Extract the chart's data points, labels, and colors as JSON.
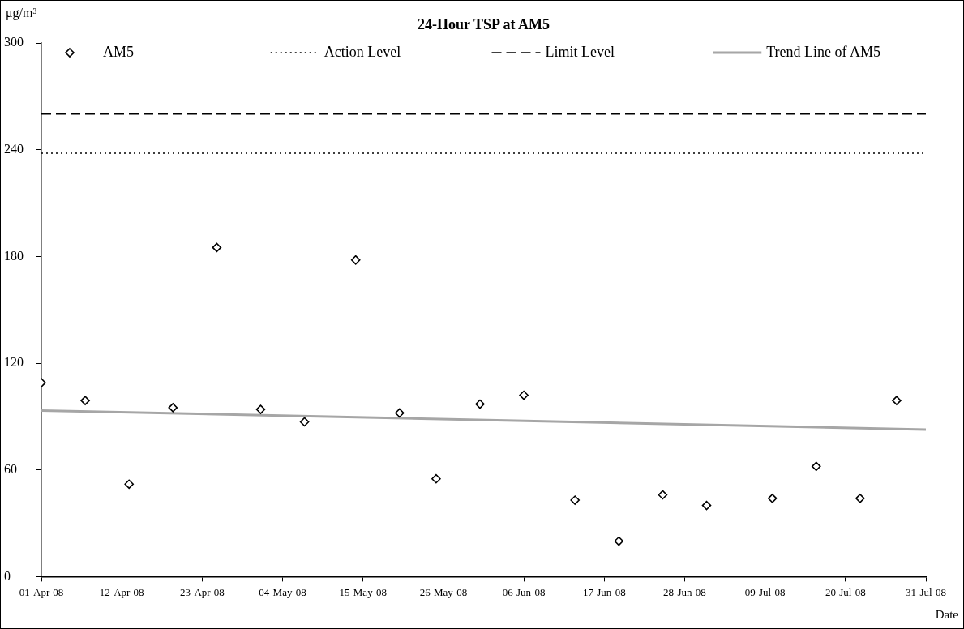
{
  "chart_data": {
    "type": "scatter",
    "title": "24-Hour TSP at AM5",
    "ylabel": "μg/m³",
    "xlabel": "Date",
    "xlim": [
      "--04-01",
      "--07-31"
    ],
    "xticks": [
      {
        "value": "--04-01",
        "label": "01-Apr-08"
      },
      {
        "value": "--04-12",
        "label": "12-Apr-08"
      },
      {
        "value": "--04-23",
        "label": "23-Apr-08"
      },
      {
        "value": "--05-04",
        "label": "04-May-08"
      },
      {
        "value": "--05-15",
        "label": "15-May-08"
      },
      {
        "value": "--05-26",
        "label": "26-May-08"
      },
      {
        "value": "--06-06",
        "label": "06-Jun-08"
      },
      {
        "value": "--06-17",
        "label": "17-Jun-08"
      },
      {
        "value": "--06-28",
        "label": "28-Jun-08"
      },
      {
        "value": "--07-09",
        "label": "09-Jul-08"
      },
      {
        "value": "--07-20",
        "label": "20-Jul-08"
      },
      {
        "value": "--07-31",
        "label": "31-Jul-08"
      }
    ],
    "ylim": [
      0,
      300
    ],
    "yticks": [
      0,
      60,
      120,
      180,
      240,
      300
    ],
    "series": [
      {
        "name": "AM5",
        "marker": "diamond",
        "color": "#000000",
        "x": [
          "--04-01",
          "--04-07",
          "--04-13",
          "--04-19",
          "--04-25",
          "--05-01",
          "--05-07",
          "--05-14",
          "--05-20",
          "--05-25",
          "--05-31",
          "--06-06",
          "--06-13",
          "--06-19",
          "--06-25",
          "--07-01",
          "--07-10",
          "--07-16",
          "--07-22",
          "--07-27"
        ],
        "values": [
          109,
          99,
          52,
          95,
          185,
          94,
          87,
          178,
          92,
          55,
          97,
          102,
          43,
          20,
          46,
          40,
          44,
          62,
          44,
          99
        ]
      },
      {
        "name": "Trend Line of AM5",
        "type": "line",
        "marker": "none",
        "color": "#a6a6a6",
        "x": [
          "--04-01",
          "--07-31"
        ],
        "values": [
          93.4,
          82.7
        ]
      }
    ],
    "ref_lines": [
      {
        "axis": "y",
        "value": 238,
        "label": "Action Level",
        "line_style": "dotted",
        "color": "#000000"
      },
      {
        "axis": "y",
        "value": 260,
        "label": "Limit Level",
        "line_style": "dashed",
        "color": "#000000"
      }
    ],
    "legend": "top",
    "grid": false
  }
}
